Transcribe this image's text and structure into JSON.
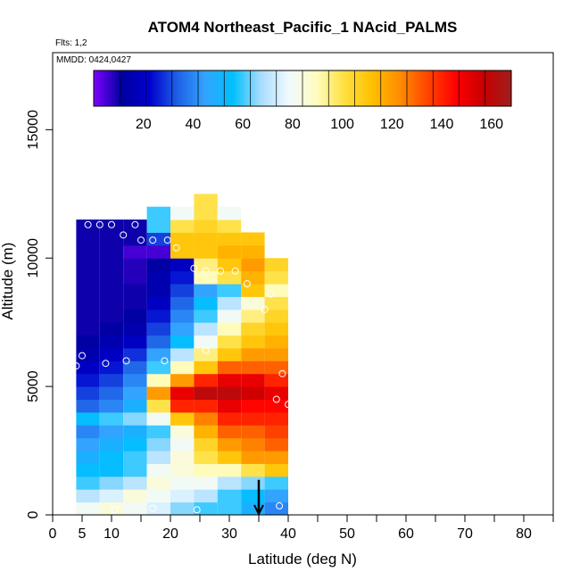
{
  "chart_data": {
    "type": "heatmap",
    "title": "ATOM4 Northeast_Pacific_1 NAcid_PALMS",
    "flights_label": "Flts: 1,2",
    "dates_label": "MMDD: 0424,0427",
    "xlabel": "Latitude (deg N)",
    "ylabel": "Altitude (m)",
    "xlim": [
      0,
      85
    ],
    "ylim": [
      0,
      18000
    ],
    "x_ticks": [
      0,
      5,
      10,
      20,
      30,
      40,
      50,
      60,
      70,
      80
    ],
    "y_ticks": [
      0,
      5000,
      10000,
      15000
    ],
    "colorbar": {
      "min": 0,
      "max": 168,
      "ticks": [
        20,
        40,
        60,
        80,
        100,
        120,
        140,
        160
      ],
      "colors": [
        "#7f00ff",
        "#0000a0",
        "#0000cd",
        "#1e60e6",
        "#33a3ff",
        "#00c0ff",
        "#a8dcff",
        "#f0faff",
        "#fffcc0",
        "#ffe040",
        "#ffc000",
        "#ff8c00",
        "#ff4500",
        "#ff0000",
        "#c80000",
        "#a01e1e"
      ],
      "segments": 16
    },
    "curtain_columns": [
      {
        "lat": 4.5,
        "alt_min": 0,
        "alt_max": 1000,
        "values": [
          95
        ]
      },
      {
        "lat": 6,
        "alt_min": 0,
        "alt_max": 11500,
        "values": [
          80,
          70,
          60,
          55,
          50,
          45,
          40,
          55,
          35,
          30,
          25,
          20,
          15,
          12,
          10,
          10,
          10,
          10,
          10,
          10,
          10,
          10,
          10
        ]
      },
      {
        "lat": 10,
        "alt_min": 0,
        "alt_max": 11500,
        "values": [
          85,
          75,
          65,
          55,
          55,
          50,
          45,
          60,
          40,
          35,
          30,
          25,
          20,
          15,
          12,
          10,
          10,
          10,
          10,
          10,
          10,
          10,
          10
        ]
      },
      {
        "lat": 14,
        "alt_min": 0,
        "alt_max": 11500,
        "values": [
          80,
          85,
          70,
          60,
          60,
          55,
          50,
          65,
          50,
          45,
          40,
          35,
          28,
          20,
          15,
          12,
          10,
          10,
          8,
          8,
          5,
          10,
          10
        ]
      },
      {
        "lat": 18,
        "alt_min": 0,
        "alt_max": 12000,
        "values": [
          75,
          80,
          85,
          80,
          70,
          65,
          60,
          80,
          100,
          120,
          90,
          60,
          45,
          35,
          30,
          25,
          20,
          15,
          15,
          12,
          5,
          30,
          60,
          60
        ]
      },
      {
        "lat": 22,
        "alt_min": 0,
        "alt_max": 12000,
        "values": [
          65,
          75,
          80,
          85,
          85,
          80,
          85,
          110,
          140,
          150,
          120,
          90,
          70,
          55,
          45,
          40,
          35,
          30,
          25,
          20,
          110,
          110,
          100,
          80
        ]
      },
      {
        "lat": 26,
        "alt_min": 0,
        "alt_max": 12500,
        "values": [
          60,
          70,
          80,
          90,
          100,
          105,
          115,
          125,
          140,
          160,
          140,
          110,
          95,
          80,
          70,
          60,
          55,
          45,
          90,
          95,
          110,
          110,
          105,
          100,
          100
        ]
      },
      {
        "lat": 30,
        "alt_min": 0,
        "alt_max": 12000,
        "values": [
          60,
          60,
          70,
          90,
          110,
          120,
          130,
          140,
          150,
          160,
          150,
          130,
          110,
          100,
          90,
          80,
          70,
          60,
          100,
          110,
          115,
          110,
          100,
          80
        ]
      },
      {
        "lat": 34,
        "alt_min": 0,
        "alt_max": 11000,
        "values": [
          50,
          55,
          65,
          100,
          120,
          125,
          130,
          140,
          145,
          155,
          150,
          130,
          120,
          110,
          105,
          95,
          85,
          110,
          115,
          120,
          115,
          110
        ]
      },
      {
        "lat": 38,
        "alt_min": 0,
        "alt_max": 10000,
        "values": [
          40,
          45,
          60,
          110,
          120,
          130,
          135,
          140,
          145,
          150,
          140,
          130,
          120,
          115,
          110,
          105,
          100,
          90,
          100,
          105
        ]
      }
    ],
    "markers": [
      {
        "lat": 6,
        "alt": 11300
      },
      {
        "lat": 8,
        "alt": 11300
      },
      {
        "lat": 10,
        "alt": 11300
      },
      {
        "lat": 12,
        "alt": 10900
      },
      {
        "lat": 14,
        "alt": 11300
      },
      {
        "lat": 15,
        "alt": 10700
      },
      {
        "lat": 17,
        "alt": 10700
      },
      {
        "lat": 19.5,
        "alt": 10700
      },
      {
        "lat": 21,
        "alt": 10400
      },
      {
        "lat": 24,
        "alt": 9600
      },
      {
        "lat": 26,
        "alt": 9500
      },
      {
        "lat": 28.5,
        "alt": 9500
      },
      {
        "lat": 31,
        "alt": 9500
      },
      {
        "lat": 33,
        "alt": 9000
      },
      {
        "lat": 36,
        "alt": 8000
      },
      {
        "lat": 37,
        "alt": 8600
      },
      {
        "lat": 4,
        "alt": 5800
      },
      {
        "lat": 5,
        "alt": 6200
      },
      {
        "lat": 9,
        "alt": 5900
      },
      {
        "lat": 12.5,
        "alt": 6000
      },
      {
        "lat": 19,
        "alt": 6000
      },
      {
        "lat": 26,
        "alt": 6400
      },
      {
        "lat": 39,
        "alt": 5500
      },
      {
        "lat": 38,
        "alt": 4500
      },
      {
        "lat": 40,
        "alt": 4300
      },
      {
        "lat": 10.5,
        "alt": 200
      },
      {
        "lat": 17,
        "alt": 250
      },
      {
        "lat": 24.5,
        "alt": 200
      },
      {
        "lat": 38.5,
        "alt": 350
      }
    ],
    "arrow_lat": 35,
    "grid": false
  }
}
